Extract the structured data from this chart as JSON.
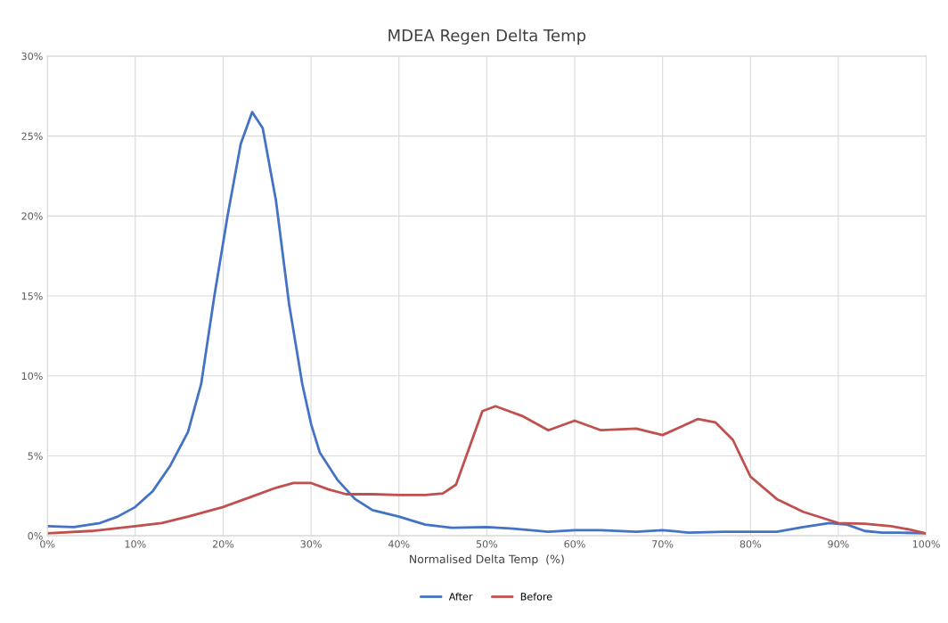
{
  "chart_data": {
    "type": "line",
    "title": "MDEA Regen Delta Temp",
    "xlabel": "Normalised Delta Temp  (%)",
    "xlim": [
      0,
      100
    ],
    "xticks": [
      {
        "value": 0,
        "label": "0%"
      },
      {
        "value": 10,
        "label": "10%"
      },
      {
        "value": 20,
        "label": "20%"
      },
      {
        "value": 30,
        "label": "30%"
      },
      {
        "value": 40,
        "label": "40%"
      },
      {
        "value": 50,
        "label": "50%"
      },
      {
        "value": 60,
        "label": "60%"
      },
      {
        "value": 70,
        "label": "70%"
      },
      {
        "value": 80,
        "label": "80%"
      },
      {
        "value": 90,
        "label": "90%"
      },
      {
        "value": 100,
        "label": "100%"
      }
    ],
    "ylim": [
      0,
      30
    ],
    "yticks": [
      {
        "value": 0,
        "label": "0%"
      },
      {
        "value": 5,
        "label": "5%"
      },
      {
        "value": 10,
        "label": "10%"
      },
      {
        "value": 15,
        "label": "15%"
      },
      {
        "value": 20,
        "label": "20%"
      },
      {
        "value": 25,
        "label": "25%"
      },
      {
        "value": 30,
        "label": "30%"
      }
    ],
    "grid": true,
    "legend": "bottom",
    "marker": "none",
    "line_style": "solid",
    "series": [
      {
        "name": "After",
        "color": "#4472c4",
        "x": [
          0,
          3,
          6,
          8,
          10,
          12,
          14,
          16,
          17.5,
          19,
          20.5,
          22,
          23.3,
          24.5,
          26,
          27.5,
          29,
          30,
          31,
          33,
          35,
          37,
          40,
          43,
          46,
          50,
          53,
          57,
          60,
          63,
          67,
          70,
          73,
          77,
          80,
          83,
          86,
          89,
          91,
          93,
          95,
          97,
          100
        ],
        "values": [
          0.6,
          0.55,
          0.8,
          1.2,
          1.8,
          2.8,
          4.4,
          6.5,
          9.5,
          15,
          20,
          24.5,
          26.5,
          25.5,
          21,
          14.5,
          9.5,
          7,
          5.2,
          3.5,
          2.3,
          1.6,
          1.2,
          0.7,
          0.5,
          0.55,
          0.45,
          0.25,
          0.35,
          0.35,
          0.25,
          0.35,
          0.2,
          0.25,
          0.25,
          0.25,
          0.55,
          0.8,
          0.7,
          0.3,
          0.2,
          0.2,
          0.15
        ]
      },
      {
        "name": "Before",
        "color": "#c0504d",
        "x": [
          0,
          5,
          10,
          13,
          16,
          20,
          23,
          26,
          28,
          30,
          32,
          34,
          37,
          40,
          43,
          45,
          46.5,
          48,
          49.5,
          51,
          52.5,
          54,
          57,
          60,
          63,
          67,
          70,
          72,
          74,
          76,
          78,
          80,
          83,
          86,
          90,
          93,
          96,
          98,
          100
        ],
        "values": [
          0.15,
          0.3,
          0.6,
          0.8,
          1.2,
          1.8,
          2.4,
          3.0,
          3.3,
          3.3,
          2.9,
          2.6,
          2.6,
          2.55,
          2.55,
          2.65,
          3.2,
          5.5,
          7.8,
          8.1,
          7.8,
          7.5,
          6.6,
          7.2,
          6.6,
          6.7,
          6.3,
          6.8,
          7.3,
          7.1,
          6.0,
          3.7,
          2.3,
          1.5,
          0.8,
          0.75,
          0.6,
          0.4,
          0.15
        ]
      }
    ]
  }
}
